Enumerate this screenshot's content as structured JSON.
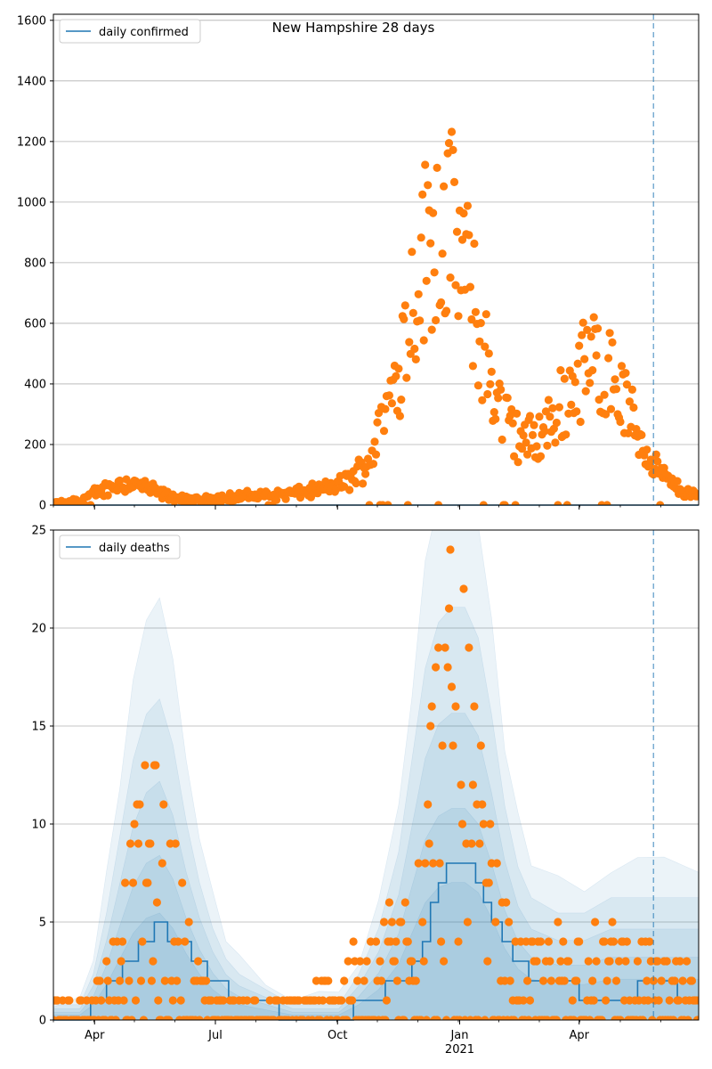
{
  "chart_data": [
    {
      "type": "scatter",
      "title": "New Hampshire 28 days",
      "xlabel": "",
      "ylabel": "",
      "ylim": [
        0,
        1620
      ],
      "yticks": [
        0,
        200,
        400,
        600,
        800,
        1000,
        1200,
        1400,
        1600
      ],
      "xticks": [
        "Apr",
        "Jul",
        "Oct",
        "Jan",
        "Apr"
      ],
      "xtick_sublabel": "2021",
      "x_start": "2020-03-01",
      "x_end": "2021-06-30",
      "vline_date": "2021-05-27",
      "grid": "horizontal",
      "legend": "top-left",
      "series": [
        {
          "name": "daily confirmed",
          "kind": "line",
          "color": "#1f77b4",
          "values": [
            [
              0,
              0
            ],
            [
              486,
              0
            ]
          ]
        },
        {
          "name": "",
          "kind": "points",
          "color": "#ff7f0e",
          "values": []
        }
      ]
    },
    {
      "type": "scatter",
      "title": "",
      "xlabel": "",
      "ylabel": "",
      "ylim": [
        0,
        25
      ],
      "yticks": [
        0,
        5,
        10,
        15,
        20,
        25
      ],
      "xticks": [
        "Apr",
        "Jul",
        "Oct",
        "Jan",
        "Apr"
      ],
      "xtick_sublabel": "2021",
      "vline_date": "2021-05-27",
      "grid": "horizontal",
      "legend": "top-left",
      "series": [
        {
          "name": "daily deaths",
          "kind": "step-line",
          "color": "#1f77b4",
          "values": [
            [
              0,
              0
            ],
            [
              14,
              0
            ],
            [
              18,
              0
            ],
            [
              24,
              0
            ],
            [
              28,
              1
            ],
            [
              34,
              1
            ],
            [
              40,
              2
            ],
            [
              46,
              2
            ],
            [
              52,
              3
            ],
            [
              58,
              3
            ],
            [
              64,
              4
            ],
            [
              70,
              4
            ],
            [
              74,
              4
            ],
            [
              76,
              5
            ],
            [
              82,
              5
            ],
            [
              86,
              4
            ],
            [
              92,
              4
            ],
            [
              98,
              4
            ],
            [
              104,
              3
            ],
            [
              110,
              3
            ],
            [
              116,
              2
            ],
            [
              122,
              2
            ],
            [
              132,
              1
            ],
            [
              160,
              1
            ],
            [
              170,
              0
            ],
            [
              220,
              0
            ],
            [
              226,
              1
            ],
            [
              240,
              1
            ],
            [
              250,
              2
            ],
            [
              262,
              2
            ],
            [
              270,
              3
            ],
            [
              278,
              4
            ],
            [
              284,
              6
            ],
            [
              290,
              7
            ],
            [
              296,
              8
            ],
            [
              312,
              8
            ],
            [
              318,
              7
            ],
            [
              324,
              6
            ],
            [
              330,
              5
            ],
            [
              338,
              4
            ],
            [
              346,
              3
            ],
            [
              358,
              2
            ],
            [
              386,
              2
            ],
            [
              396,
              1
            ],
            [
              430,
              1
            ],
            [
              440,
              2
            ],
            [
              456,
              2
            ],
            [
              470,
              1
            ],
            [
              486,
              1
            ]
          ]
        },
        {
          "name": "",
          "kind": "points",
          "color": "#ff7f0e",
          "values": []
        },
        {
          "name": "",
          "kind": "band",
          "color": "#1f77b4",
          "values": [
            [
              0,
              1,
              0
            ],
            [
              20,
              1,
              0
            ],
            [
              30,
              3,
              0
            ],
            [
              40,
              7,
              0
            ],
            [
              50,
              12,
              0
            ],
            [
              60,
              17,
              0
            ],
            [
              70,
              20,
              0
            ],
            [
              80,
              21,
              0
            ],
            [
              90,
              18,
              0
            ],
            [
              100,
              13,
              0
            ],
            [
              110,
              9,
              0
            ],
            [
              120,
              6,
              0
            ],
            [
              130,
              4,
              0
            ],
            [
              140,
              3,
              0
            ],
            [
              160,
              2,
              0
            ],
            [
              180,
              1,
              0
            ],
            [
              200,
              1,
              0
            ],
            [
              215,
              1,
              0
            ],
            [
              230,
              3,
              0
            ],
            [
              245,
              6,
              0
            ],
            [
              260,
              11,
              0
            ],
            [
              270,
              17,
              0
            ],
            [
              280,
              23,
              0
            ],
            [
              290,
              26,
              0
            ],
            [
              300,
              27,
              0
            ],
            [
              310,
              27,
              0
            ],
            [
              320,
              25,
              0
            ],
            [
              330,
              20,
              0
            ],
            [
              340,
              14,
              0
            ],
            [
              350,
              10,
              0
            ],
            [
              360,
              8,
              0
            ],
            [
              380,
              7,
              0
            ],
            [
              400,
              7,
              0
            ],
            [
              420,
              8,
              0
            ],
            [
              440,
              8,
              0
            ],
            [
              460,
              8,
              0
            ],
            [
              486,
              8,
              0
            ]
          ]
        }
      ]
    }
  ]
}
